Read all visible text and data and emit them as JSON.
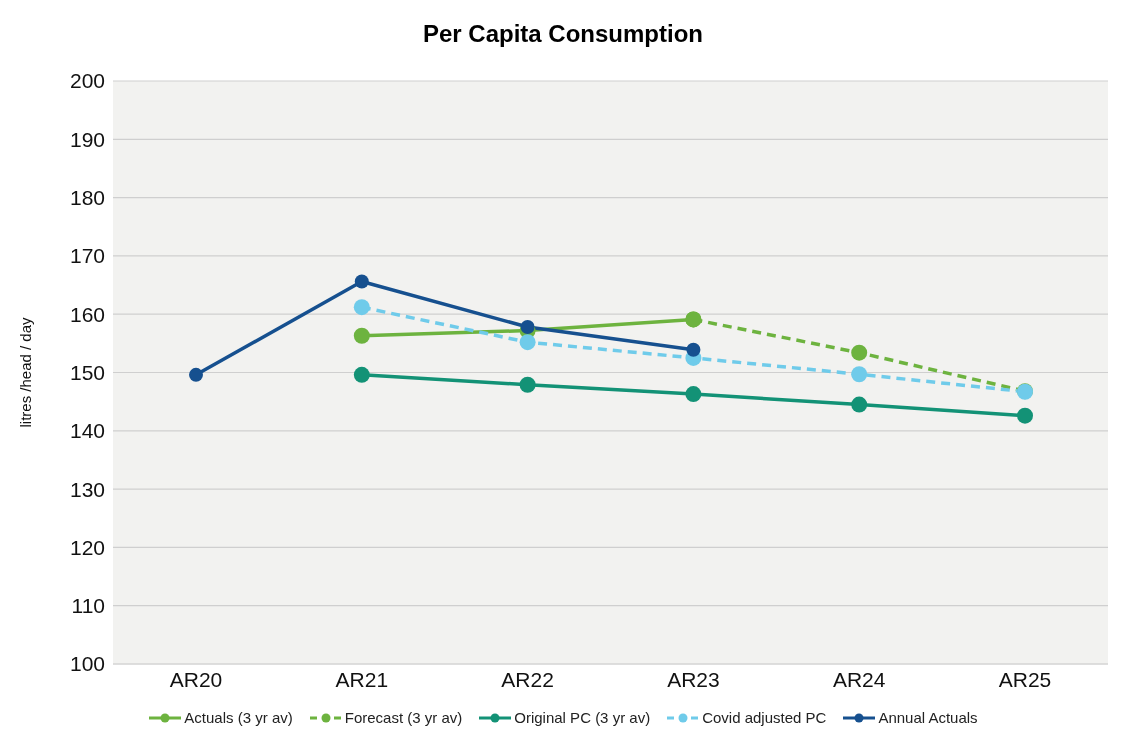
{
  "chart_data": {
    "type": "line",
    "title": "Per Capita Consumption",
    "ylabel": "litres /head / day",
    "categories": [
      "AR20",
      "AR21",
      "AR22",
      "AR23",
      "AR24",
      "AR25"
    ],
    "series": [
      {
        "name": "Actuals (3 yr av)",
        "color": "#6db33f",
        "line_style": "solid",
        "values": [
          null,
          156.3,
          157.2,
          159.1,
          null,
          null
        ]
      },
      {
        "name": "Forecast (3 yr av)",
        "color": "#6db33f",
        "line_style": "dashed",
        "values": [
          null,
          null,
          null,
          159.1,
          153.4,
          146.8
        ]
      },
      {
        "name": "Original PC (3 yr av)",
        "color": "#139276",
        "line_style": "solid",
        "values": [
          null,
          149.6,
          147.9,
          146.3,
          144.5,
          142.6
        ]
      },
      {
        "name": "Covid adjusted PC",
        "color": "#6fcbea",
        "line_style": "dashed",
        "values": [
          null,
          161.2,
          155.2,
          152.5,
          149.7,
          146.7
        ]
      },
      {
        "name": "Annual Actuals",
        "color": "#16508f",
        "line_style": "solid",
        "values": [
          149.6,
          165.6,
          157.8,
          153.9,
          null,
          null
        ]
      }
    ],
    "ylim": [
      100,
      200
    ],
    "yticks": [
      100,
      110,
      120,
      130,
      140,
      150,
      160,
      170,
      180,
      190,
      200
    ],
    "grid": "y",
    "legend": "bottom",
    "marker": "circle"
  }
}
